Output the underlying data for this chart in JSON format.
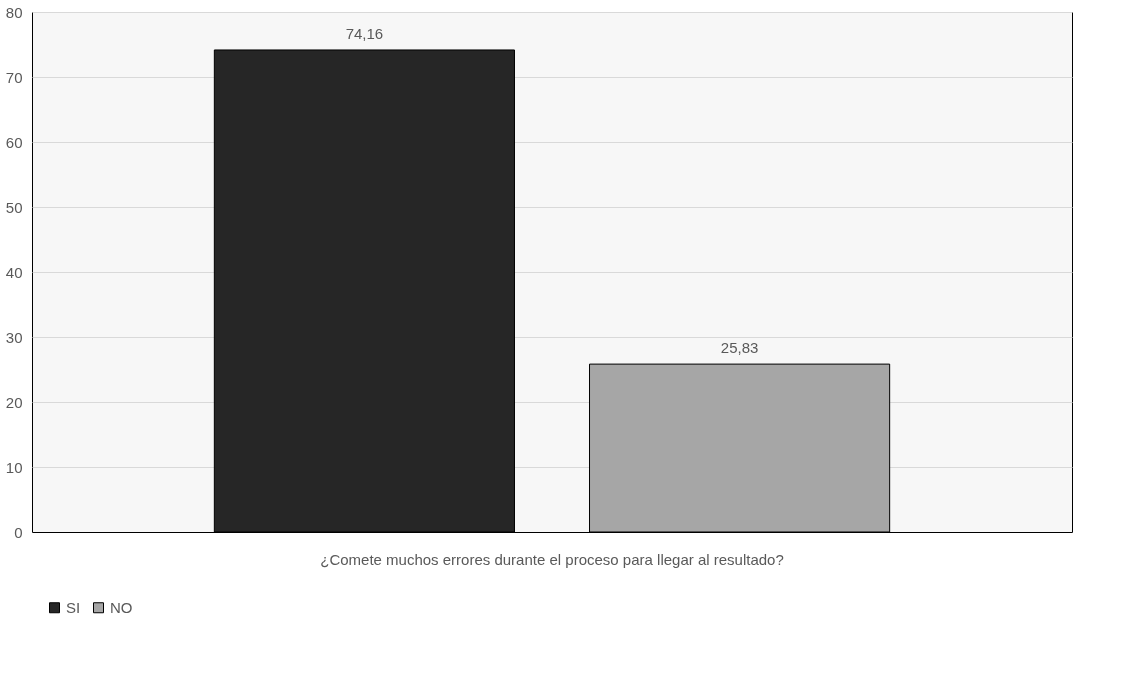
{
  "chart_data": {
    "type": "bar",
    "categories": [
      "¿Comete muchos errores durante el proceso para llegar al resultado?"
    ],
    "series": [
      {
        "name": "SI",
        "color": "#262626",
        "values": [
          74.16
        ],
        "value_labels": [
          "74,16"
        ]
      },
      {
        "name": "NO",
        "color": "#a6a6a6",
        "values": [
          25.83
        ],
        "value_labels": [
          "25,83"
        ]
      }
    ],
    "ylim": [
      0,
      80
    ],
    "yticks": [
      0,
      10,
      20,
      30,
      40,
      50,
      60,
      70,
      80
    ],
    "grid": "y",
    "legend": "bottom"
  }
}
